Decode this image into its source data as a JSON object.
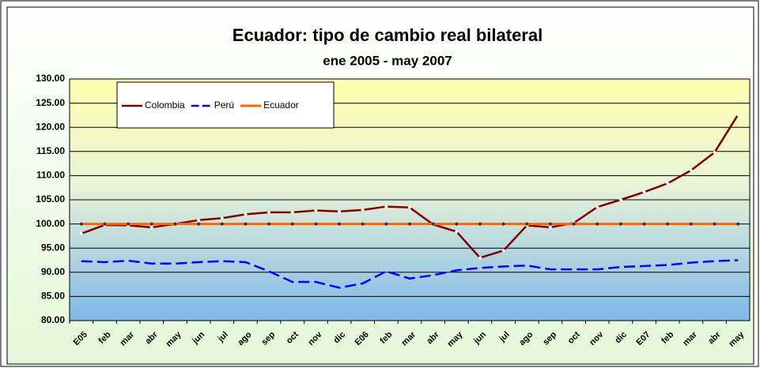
{
  "chart_data": {
    "type": "line",
    "title": "Ecuador: tipo de cambio real bilateral",
    "subtitle": "ene 2005 - may 2007",
    "categories": [
      "E05",
      "feb",
      "mar",
      "abr",
      "may",
      "jun",
      "jul",
      "ago",
      "sep",
      "oct",
      "nov",
      "dic",
      "E06",
      "feb",
      "mar",
      "abr",
      "may",
      "jun",
      "jul",
      "ago",
      "sep",
      "oct",
      "nov",
      "dic",
      "E07",
      "feb",
      "mar",
      "abr",
      "may"
    ],
    "series": [
      {
        "name": "Colombia",
        "color": "#800000",
        "values": [
          98.0,
          99.8,
          99.7,
          99.3,
          100.0,
          100.8,
          101.2,
          102.0,
          102.4,
          102.4,
          102.8,
          102.6,
          102.9,
          103.6,
          103.4,
          99.9,
          98.4,
          93.0,
          94.5,
          99.7,
          99.3,
          100.2,
          103.5,
          105.0,
          106.6,
          108.4,
          111.1,
          114.8,
          122.6
        ]
      },
      {
        "name": "Perú",
        "color": "#0000ff",
        "values": [
          92.3,
          92.1,
          92.4,
          91.8,
          91.8,
          92.1,
          92.3,
          92.1,
          90.2,
          88.0,
          88.0,
          86.8,
          87.7,
          90.2,
          88.7,
          89.4,
          90.4,
          90.9,
          91.2,
          91.4,
          90.6,
          90.6,
          90.6,
          91.1,
          91.3,
          91.5,
          92.0,
          92.3,
          92.5
        ]
      },
      {
        "name": "Ecuador",
        "color": "#ff6600",
        "values": [
          100,
          100,
          100,
          100,
          100,
          100,
          100,
          100,
          100,
          100,
          100,
          100,
          100,
          100,
          100,
          100,
          100,
          100,
          100,
          100,
          100,
          100,
          100,
          100,
          100,
          100,
          100,
          100,
          100
        ]
      }
    ],
    "ylim": [
      80,
      130
    ],
    "yticks": [
      {
        "value": 80,
        "label": "80.00"
      },
      {
        "value": 85,
        "label": "85.00"
      },
      {
        "value": 90,
        "label": "90.00"
      },
      {
        "value": 95,
        "label": "95.00"
      },
      {
        "value": 100,
        "label": "100.00"
      },
      {
        "value": 105,
        "label": "105.00"
      },
      {
        "value": 110,
        "label": "110.00"
      },
      {
        "value": 115,
        "label": "115.00"
      },
      {
        "value": 120,
        "label": "120.00"
      },
      {
        "value": 125,
        "label": "125.00"
      },
      {
        "value": 130,
        "label": "130.00"
      }
    ],
    "grid": true,
    "legend": "top-left"
  }
}
